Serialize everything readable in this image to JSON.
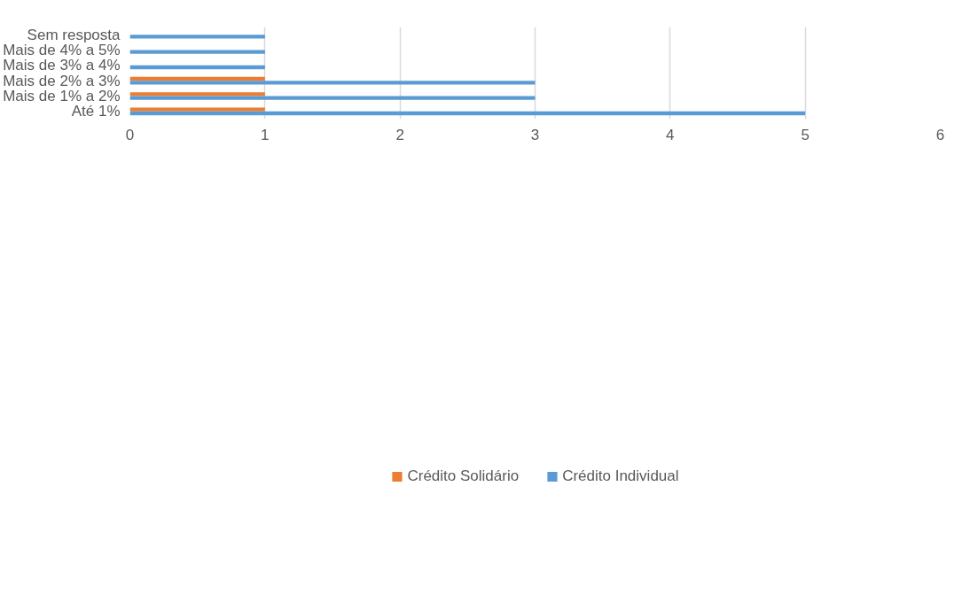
{
  "chart_data": {
    "type": "bar",
    "orientation": "horizontal",
    "categories": [
      "Sem resposta",
      "Mais de 4% a 5%",
      "Mais de 3% a 4%",
      "Mais de 2% a 3%",
      "Mais de 1% a 2%",
      "Até 1%"
    ],
    "series": [
      {
        "name": "Crédito Solidário",
        "color": "#ed7d31",
        "values": [
          null,
          null,
          null,
          1,
          1,
          1
        ]
      },
      {
        "name": "Crédito Individual",
        "color": "#5b9bd5",
        "values": [
          1,
          1,
          1,
          3,
          3,
          5
        ]
      }
    ],
    "xlim": [
      0,
      6
    ],
    "xticks": [
      0,
      1,
      2,
      3,
      4,
      5,
      6
    ],
    "grid": "x",
    "legend": "bottom"
  }
}
